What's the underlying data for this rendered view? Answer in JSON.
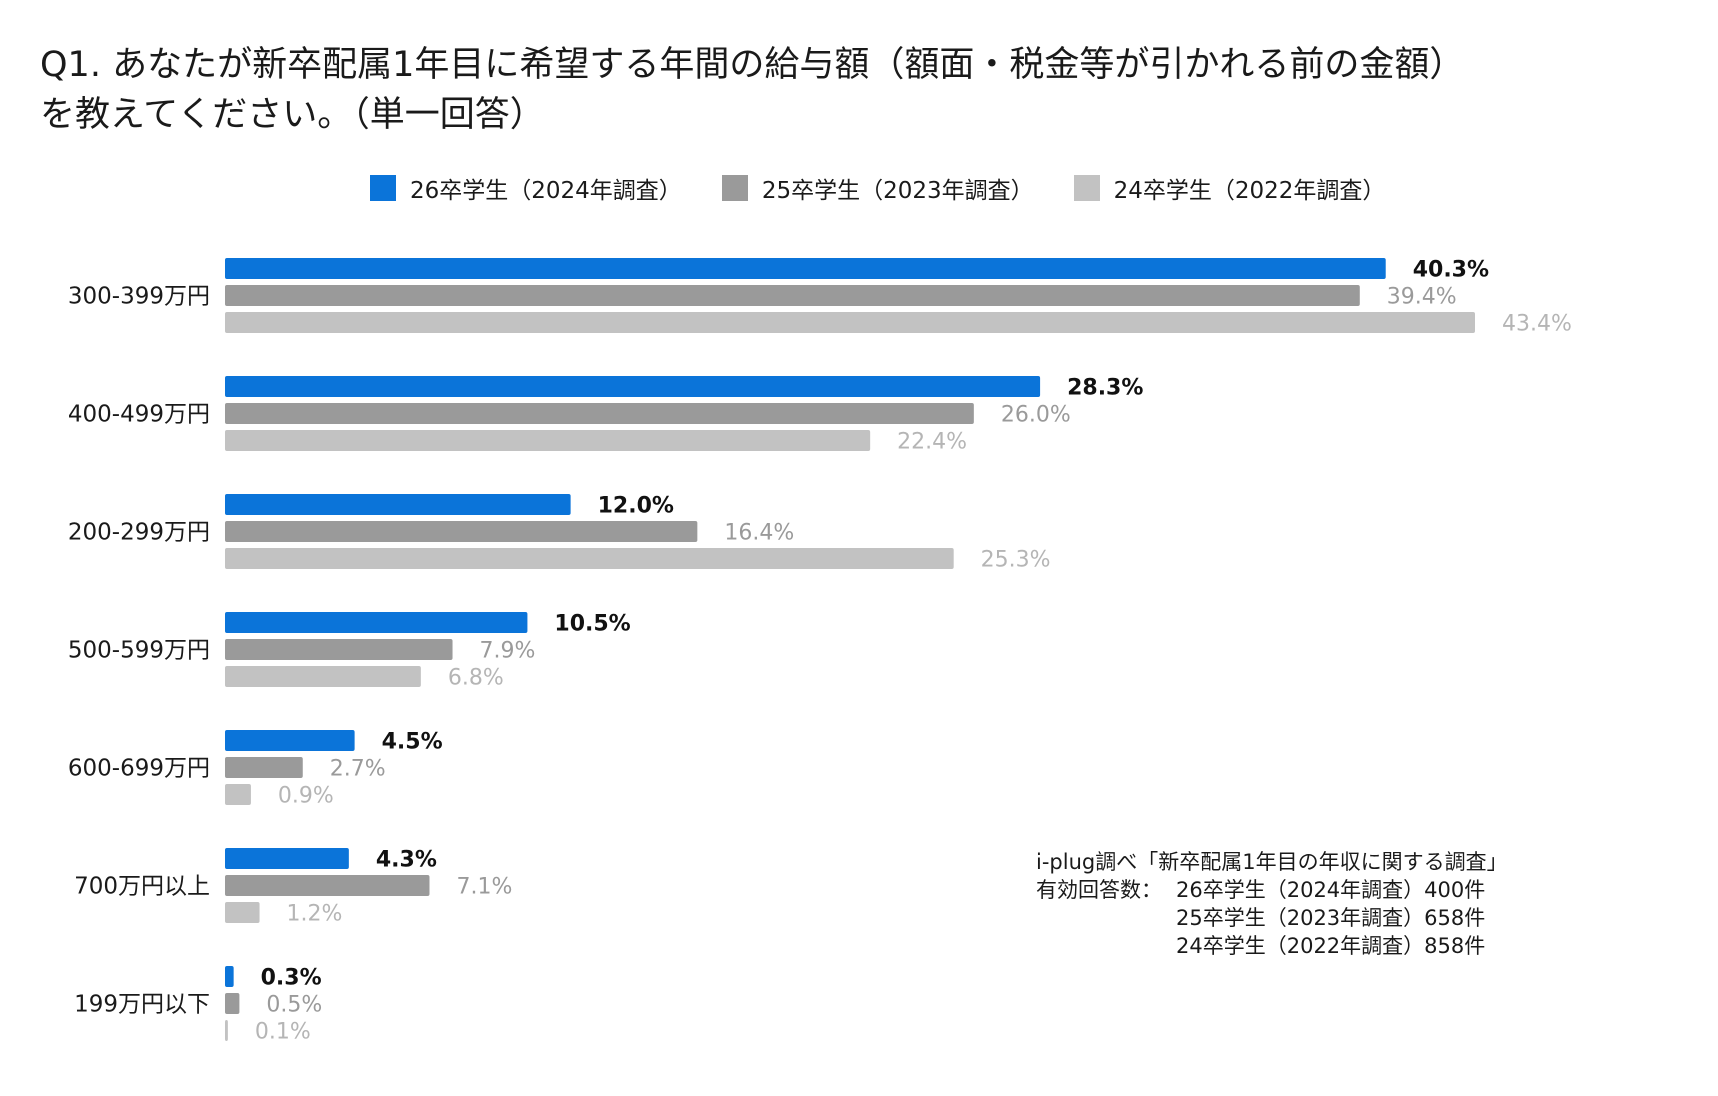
{
  "title_line1": "Q1. あなたが新卒配属1年目に希望する年間の給与額（額面・税金等が引かれる前の金額）",
  "title_line2": "を教えてください。（単一回答）",
  "legend": [
    {
      "label": "26卒学生（2024年調査）",
      "color": "#0b74d9"
    },
    {
      "label": "25卒学生（2023年調査）",
      "color": "#9a9a9a"
    },
    {
      "label": "24卒学生（2022年調査）",
      "color": "#c2c2c2"
    }
  ],
  "colors": {
    "label_highlight": "#111111",
    "label_series2": "#9a9a9a",
    "label_series3": "#b5b5b5"
  },
  "note": {
    "line1": "i-plug調べ「新卒配属1年目の年収に関する調査」",
    "prefix": "有効回答数：",
    "rows": [
      "26卒学生（2024年調査）400件",
      "25卒学生（2023年調査）658件",
      "24卒学生（2022年調査）858件"
    ]
  },
  "chart_data": {
    "type": "bar",
    "orientation": "horizontal",
    "title": "Q1. あなたが新卒配属1年目に希望する年間の給与額（額面・税金等が引かれる前の金額）を教えてください。（単一回答）",
    "categories": [
      "300-399万円",
      "400-499万円",
      "200-299万円",
      "500-599万円",
      "600-699万円",
      "700万円以上",
      "199万円以下"
    ],
    "series": [
      {
        "name": "26卒学生（2024年調査）",
        "values": [
          40.3,
          28.3,
          12.0,
          10.5,
          4.5,
          4.3,
          0.3
        ]
      },
      {
        "name": "25卒学生（2023年調査）",
        "values": [
          39.4,
          26.0,
          16.4,
          7.9,
          2.7,
          7.1,
          0.5
        ]
      },
      {
        "name": "24卒学生（2022年調査）",
        "values": [
          43.4,
          22.4,
          25.3,
          6.8,
          0.9,
          1.2,
          0.1
        ]
      }
    ],
    "value_suffix": "%",
    "xlim": [
      0,
      45
    ],
    "grid": false,
    "legend_position": "top"
  }
}
